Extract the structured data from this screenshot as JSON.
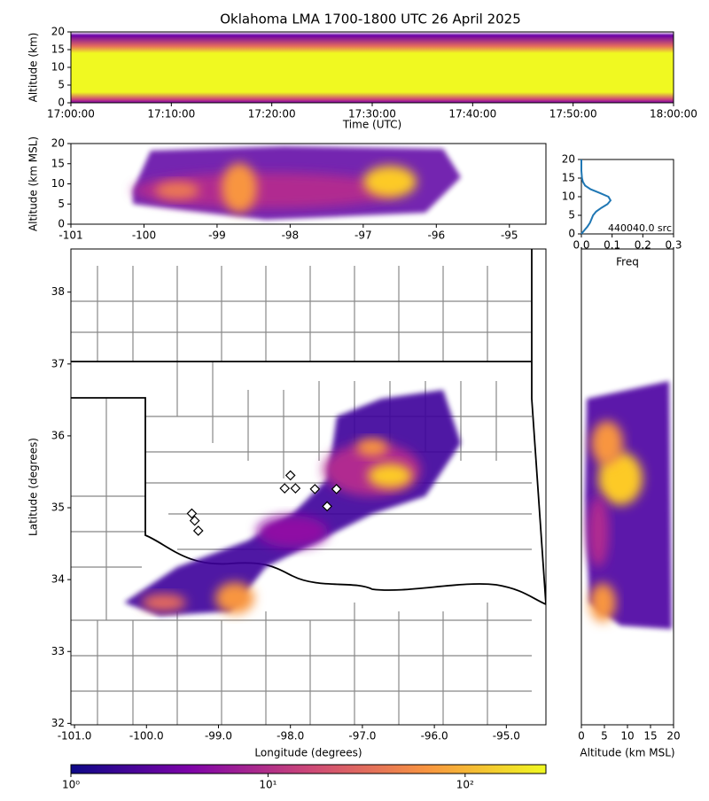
{
  "title": "Oklahoma LMA 1700-1800 UTC 26 April 2025",
  "chart_data": [
    {
      "type": "heatmap",
      "xlabel": "Time (UTC)",
      "ylabel": "Altitude (km)",
      "xticks": [
        "17:00:00",
        "17:10:00",
        "17:20:00",
        "17:30:00",
        "17:40:00",
        "17:50:00",
        "18:00:00"
      ],
      "ylim": [
        0,
        20
      ],
      "yticks": [
        0,
        5,
        10,
        15,
        20
      ]
    },
    {
      "type": "heatmap",
      "ylabel": "Altitude (km MSL)",
      "xlim": [
        -101,
        -94.5
      ],
      "xticks": [
        -101,
        -100,
        -99,
        -98,
        -97,
        -96,
        -95
      ],
      "ylim": [
        0,
        20
      ],
      "yticks": [
        0,
        5,
        10,
        15,
        20
      ]
    },
    {
      "type": "line",
      "xlabel": "Freq",
      "annotation": "440040.0 src",
      "color": "#1f77b4",
      "xlim": [
        0,
        0.3
      ],
      "xticks": [
        {
          "value": 0,
          "label": "0.0"
        },
        0.1,
        0.2,
        0.3
      ],
      "ylim": [
        0,
        20
      ],
      "yticks": [
        0,
        5,
        10,
        15,
        20
      ],
      "y": [
        0,
        1,
        2,
        3,
        4,
        5,
        6,
        7,
        8,
        9,
        10,
        11,
        12,
        13,
        14,
        15,
        16,
        17,
        18,
        19,
        20
      ],
      "values": [
        0.0,
        0.01,
        0.02,
        0.028,
        0.033,
        0.038,
        0.048,
        0.065,
        0.085,
        0.095,
        0.088,
        0.06,
        0.03,
        0.012,
        0.005,
        0.002,
        0.001,
        0,
        0,
        0,
        0
      ]
    },
    {
      "type": "scatter",
      "xlabel": "Longitude (degrees)",
      "ylabel": "Latitude (degrees)",
      "color": "#ffffff",
      "xlim": [
        -101.05,
        -94.45
      ],
      "xticks": [
        {
          "value": -101,
          "label": "-101.0"
        },
        {
          "value": -100,
          "label": "-100.0"
        },
        {
          "value": -99,
          "label": "-99.0"
        },
        {
          "value": -98,
          "label": "-98.0"
        },
        {
          "value": -97,
          "label": "-97.0"
        },
        {
          "value": -96,
          "label": "-96.0"
        },
        {
          "value": -95,
          "label": "-95.0"
        }
      ],
      "ylim": [
        31.98,
        38.6
      ],
      "yticks": [
        32,
        33,
        34,
        35,
        36,
        37,
        38
      ],
      "x": [
        -98.0,
        -98.08,
        -97.93,
        -97.66,
        -97.36,
        -97.49,
        -99.37,
        -99.33,
        -99.28
      ],
      "values": [
        35.45,
        35.27,
        35.27,
        35.26,
        35.26,
        35.02,
        34.92,
        34.82,
        34.68
      ]
    },
    {
      "type": "heatmap",
      "xlabel": "Altitude (km MSL)",
      "xlim": [
        0,
        20
      ],
      "xticks": [
        0,
        5,
        10,
        15,
        20
      ],
      "ylim": [
        31.98,
        38.6
      ]
    },
    {
      "type": "colorbar",
      "log": true,
      "xlim": [
        1,
        257
      ],
      "xticks": [
        {
          "value": 1,
          "label": "10⁰"
        },
        {
          "value": 10,
          "label": "10¹"
        },
        {
          "value": 100,
          "label": "10²"
        }
      ]
    }
  ]
}
